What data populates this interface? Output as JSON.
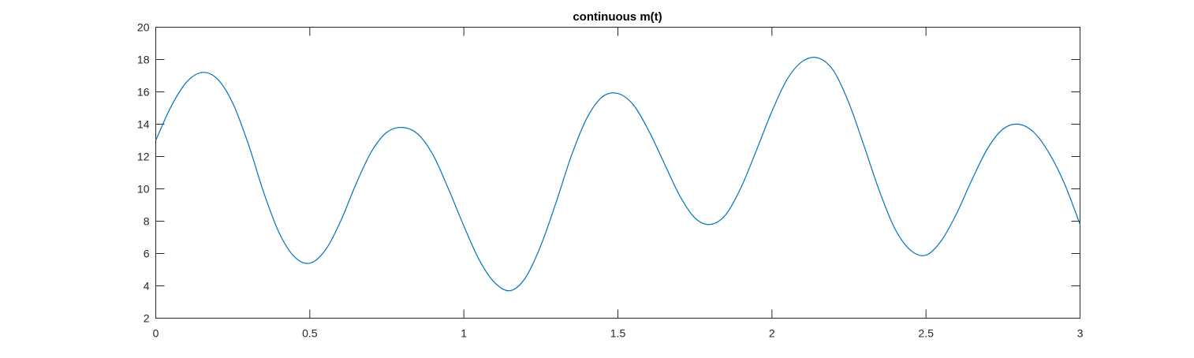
{
  "chart_data": {
    "type": "line",
    "title": "continuous m(t)",
    "xlabel": "",
    "ylabel": "",
    "xlim": [
      0,
      3
    ],
    "ylim": [
      2,
      20
    ],
    "xticks": [
      "0",
      "0.5",
      "1",
      "1.5",
      "2",
      "2.5",
      "3"
    ],
    "yticks": [
      "2",
      "4",
      "6",
      "8",
      "10",
      "12",
      "14",
      "16",
      "18",
      "20"
    ],
    "grid": false,
    "series": [
      {
        "color": "#0072BD",
        "x": [
          0,
          0.05,
          0.1,
          0.15,
          0.2,
          0.25,
          0.3,
          0.35,
          0.4,
          0.45,
          0.5,
          0.55,
          0.6,
          0.65,
          0.7,
          0.75,
          0.8,
          0.85,
          0.9,
          0.95,
          1.0,
          1.05,
          1.1,
          1.15,
          1.2,
          1.25,
          1.3,
          1.35,
          1.4,
          1.45,
          1.5,
          1.55,
          1.6,
          1.65,
          1.7,
          1.75,
          1.8,
          1.85,
          1.9,
          1.95,
          2.0,
          2.05,
          2.1,
          2.15,
          2.2,
          2.25,
          2.3,
          2.35,
          2.4,
          2.45,
          2.5,
          2.55,
          2.6,
          2.65,
          2.7,
          2.75,
          2.8,
          2.85,
          2.9,
          2.95,
          3.0
        ],
        "y": [
          13.0,
          15.1,
          16.6,
          17.2,
          16.8,
          15.3,
          12.8,
          9.8,
          7.3,
          5.8,
          5.4,
          6.2,
          8.0,
          10.3,
          12.3,
          13.5,
          13.8,
          13.4,
          12.1,
          10.0,
          7.7,
          5.6,
          4.2,
          3.7,
          4.5,
          6.5,
          9.2,
          12.1,
          14.4,
          15.7,
          15.9,
          15.2,
          13.6,
          11.6,
          9.6,
          8.2,
          7.8,
          8.4,
          10.1,
          12.4,
          14.8,
          16.8,
          17.9,
          18.1,
          17.3,
          15.3,
          12.6,
          9.8,
          7.5,
          6.2,
          5.9,
          6.8,
          8.5,
          10.6,
          12.5,
          13.7,
          14.0,
          13.5,
          12.2,
          10.3,
          7.8
        ]
      }
    ]
  }
}
